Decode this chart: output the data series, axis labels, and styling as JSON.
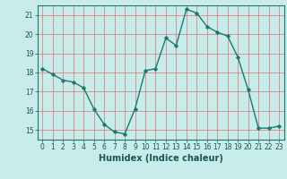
{
  "x": [
    0,
    1,
    2,
    3,
    4,
    5,
    6,
    7,
    8,
    9,
    10,
    11,
    12,
    13,
    14,
    15,
    16,
    17,
    18,
    19,
    20,
    21,
    22,
    23
  ],
  "y": [
    18.2,
    17.9,
    17.6,
    17.5,
    17.2,
    16.1,
    15.3,
    14.9,
    14.8,
    16.1,
    18.1,
    18.2,
    19.8,
    19.4,
    21.3,
    21.1,
    20.4,
    20.1,
    19.9,
    18.8,
    17.1,
    15.1,
    15.1,
    15.2
  ],
  "line_color": "#1a7a6e",
  "marker": "D",
  "markersize": 1.8,
  "linewidth": 1.0,
  "bg_color": "#c8ecea",
  "grid_color": "#e07070",
  "xlabel": "Humidex (Indice chaleur)",
  "ylabel": "",
  "xlim": [
    -0.5,
    23.5
  ],
  "ylim": [
    14.5,
    21.5
  ],
  "yticks": [
    15,
    16,
    17,
    18,
    19,
    20,
    21
  ],
  "xticks": [
    0,
    1,
    2,
    3,
    4,
    5,
    6,
    7,
    8,
    9,
    10,
    11,
    12,
    13,
    14,
    15,
    16,
    17,
    18,
    19,
    20,
    21,
    22,
    23
  ],
  "tick_fontsize": 5.5,
  "xlabel_fontsize": 7.0,
  "tick_color": "#1a5555",
  "spine_color": "#1a7a6e"
}
